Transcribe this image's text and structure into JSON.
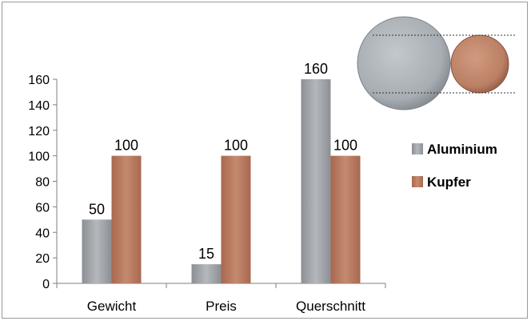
{
  "chart_data": {
    "type": "bar",
    "categories": [
      "Gewicht",
      "Preis",
      "Querschnitt"
    ],
    "series": [
      {
        "name": "Aluminium",
        "values": [
          50,
          15,
          160
        ],
        "color": "#a0a4a8"
      },
      {
        "name": "Kupfer",
        "values": [
          100,
          100,
          100
        ],
        "color": "#b87a60"
      }
    ],
    "yticks": [
      0,
      20,
      40,
      60,
      80,
      100,
      120,
      140,
      160
    ],
    "ylim": [
      0,
      160
    ],
    "title": "",
    "xlabel": "",
    "ylabel": "",
    "legend_position": "right",
    "grid": false,
    "illustration": "aluminium-vs-copper-wire-cross-section"
  }
}
